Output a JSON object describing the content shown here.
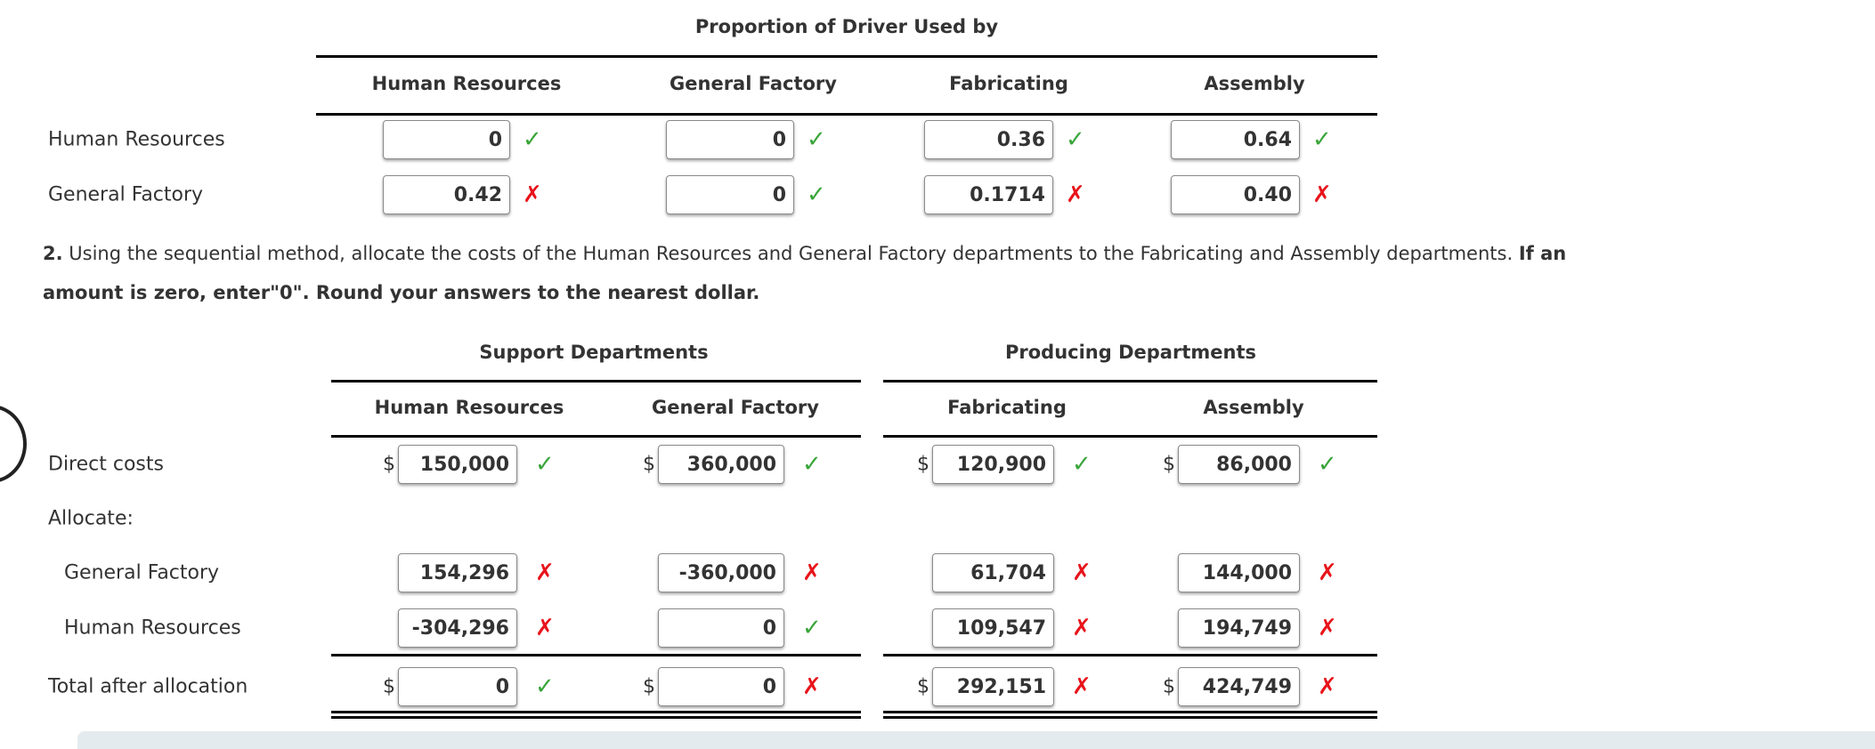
{
  "table1": {
    "title": "Proportion of Driver Used by",
    "columns": [
      "Human Resources",
      "General Factory",
      "Fabricating",
      "Assembly"
    ],
    "rows": [
      {
        "label": "Human Resources",
        "values": [
          "0",
          "0",
          "0.36",
          "0.64"
        ],
        "status": [
          "correct",
          "correct",
          "correct",
          "correct"
        ]
      },
      {
        "label": "General Factory",
        "values": [
          "0.42",
          "0",
          "0.1714",
          "0.40"
        ],
        "status": [
          "incorrect",
          "correct",
          "incorrect",
          "incorrect"
        ]
      }
    ]
  },
  "instructions": {
    "number": "2.",
    "text": " Using the sequential method, allocate the costs of the Human Resources and General Factory departments to the Fabricating and Assembly departments. ",
    "bold_tail_1": "If an",
    "bold_line_2": "amount is zero, enter\"0\". Round your answers to the nearest dollar."
  },
  "table2": {
    "group_support": "Support Departments",
    "group_producing": "Producing Departments",
    "columns": [
      "Human Resources",
      "General Factory",
      "Fabricating",
      "Assembly"
    ],
    "currency": "$",
    "allocate_label": "Allocate:",
    "rows": [
      {
        "label": "Direct costs",
        "values": [
          "150,000",
          "360,000",
          "120,900",
          "86,000"
        ],
        "status": [
          "correct",
          "correct",
          "correct",
          "correct"
        ],
        "dollar": true
      },
      {
        "label": "General Factory",
        "values": [
          "154,296",
          "-360,000",
          "61,704",
          "144,000"
        ],
        "status": [
          "incorrect",
          "incorrect",
          "incorrect",
          "incorrect"
        ],
        "dollar": false
      },
      {
        "label": "Human Resources",
        "values": [
          "-304,296",
          "0",
          "109,547",
          "194,749"
        ],
        "status": [
          "incorrect",
          "correct",
          "incorrect",
          "incorrect"
        ],
        "dollar": false
      },
      {
        "label": "Total after allocation",
        "values": [
          "0",
          "0",
          "292,151",
          "424,749"
        ],
        "status": [
          "correct",
          "incorrect",
          "incorrect",
          "incorrect"
        ],
        "dollar": true
      }
    ]
  },
  "icons": {
    "correct": "check-icon",
    "incorrect": "x-icon"
  },
  "colors": {
    "correct": "#3aa53a",
    "incorrect": "#e8141b"
  }
}
